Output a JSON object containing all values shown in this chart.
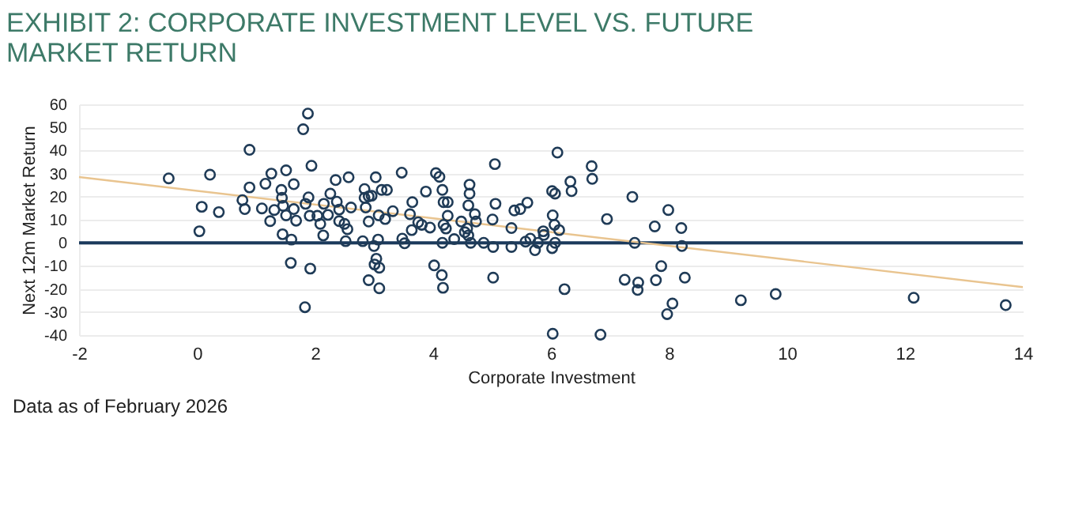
{
  "chart_data": {
    "type": "scatter",
    "title": "EXHIBIT 2: CORPORATE INVESTMENT LEVEL VS. FUTURE MARKET RETURN",
    "xlabel": "Corporate Investment",
    "ylabel": "Next 12m Market Return",
    "annotations": [
      "Data as of February 2026"
    ],
    "xlim": [
      -2,
      14
    ],
    "xticks": [
      -2,
      0,
      2,
      4,
      6,
      8,
      10,
      12,
      14
    ],
    "ylim": [
      -40,
      60
    ],
    "yticks": [
      -40,
      -30,
      -20,
      -10,
      0,
      10,
      20,
      30,
      40,
      50,
      60
    ],
    "grid": "y",
    "ref_lines": [
      {
        "axis": "y",
        "value": 0,
        "color": "#1b3a5c"
      }
    ],
    "series": [
      {
        "type": "scatter",
        "marker": "circle",
        "color": "#1f3b57",
        "x": [
          -0.48,
          0.22,
          0.08,
          0.37,
          0.04,
          0.89,
          0.89,
          0.77,
          0.81,
          1.1,
          1.16,
          1.26,
          1.24,
          1.31,
          1.43,
          1.44,
          1.51,
          1.64,
          1.46,
          1.51,
          1.64,
          1.68,
          1.45,
          1.6,
          1.59,
          1.8,
          1.88,
          1.94,
          1.89,
          1.84,
          1.91,
          1.92,
          1.83,
          2.04,
          2.09,
          2.15,
          2.14,
          2.22,
          2.26,
          2.35,
          2.37,
          2.41,
          2.41,
          2.5,
          2.57,
          2.61,
          2.55,
          2.52,
          2.81,
          2.84,
          2.84,
          2.91,
          2.96,
          3.03,
          2.86,
          2.91,
          3.08,
          3.07,
          3.0,
          3.04,
          3.01,
          3.09,
          2.91,
          3.09,
          3.13,
          3.22,
          3.19,
          3.32,
          3.47,
          3.48,
          3.52,
          3.61,
          3.65,
          3.75,
          3.81,
          3.88,
          3.64,
          3.95,
          4.05,
          4.11,
          4.16,
          4.18,
          4.25,
          4.25,
          4.18,
          4.22,
          4.16,
          4.36,
          4.48,
          4.54,
          4.58,
          4.6,
          4.64,
          4.6,
          4.62,
          4.62,
          4.71,
          4.73,
          4.86,
          5.02,
          5.05,
          5.06,
          5.01,
          5.02,
          4.02,
          4.15,
          4.17,
          5.33,
          5.33,
          5.38,
          5.48,
          5.6,
          5.57,
          5.65,
          5.73,
          5.78,
          5.87,
          5.88,
          6.03,
          6.02,
          6.07,
          6.06,
          6.14,
          6.02,
          6.07,
          6.11,
          6.23,
          6.03,
          6.33,
          6.35,
          6.69,
          6.7,
          6.84,
          6.95,
          7.25,
          7.38,
          7.42,
          7.48,
          7.47,
          7.76,
          7.78,
          7.87,
          7.99,
          8.06,
          7.97,
          8.21,
          8.22,
          8.27,
          9.22,
          9.81,
          12.15,
          13.71
        ],
        "values": [
          27.9,
          29.5,
          15.6,
          13.3,
          5.0,
          40.3,
          24,
          18.5,
          14.6,
          14.9,
          25.6,
          30,
          9.4,
          14.2,
          22.9,
          19.5,
          31.4,
          25.4,
          16,
          11.9,
          14.6,
          9.6,
          3.7,
          1.4,
          -8.7,
          49.2,
          56,
          33.4,
          19.7,
          16.9,
          11.7,
          -11.2,
          -27.9,
          11.7,
          8.2,
          16.9,
          3.2,
          12.1,
          21.3,
          27.2,
          17.8,
          14.4,
          9.4,
          8.2,
          28.4,
          15.3,
          5.9,
          0.7,
          0.7,
          23.3,
          19.5,
          20.1,
          20.4,
          28.4,
          15.3,
          9.2,
          11.9,
          1.4,
          -1.4,
          -6.9,
          -9.4,
          -10.8,
          -16.2,
          -19.7,
          22.9,
          22.9,
          10.3,
          13.7,
          30.4,
          1.8,
          -0.2,
          12.4,
          17.6,
          8.9,
          7.8,
          22.2,
          5.5,
          6.6,
          30.2,
          28.6,
          22.9,
          17.6,
          17.6,
          11.7,
          7.8,
          6.2,
          0,
          1.6,
          9.2,
          4.6,
          6.2,
          3.2,
          0,
          16.2,
          21.3,
          25.2,
          12.4,
          9.2,
          0,
          -1.8,
          34.1,
          16.9,
          10.1,
          -15.1,
          -9.8,
          -14,
          -19.5,
          -1.8,
          6.4,
          14,
          14.6,
          17.4,
          0.5,
          1.8,
          -3.2,
          0,
          5,
          3.4,
          11.9,
          22.4,
          21.3,
          7.8,
          5.5,
          -2.3,
          0,
          39.1,
          -20.1,
          -39.4,
          26.5,
          22.4,
          33.2,
          27.7,
          -39.8,
          10.3,
          -16,
          19.9,
          0,
          -17.2,
          -20.4,
          7.1,
          -16.2,
          -10.1,
          14.2,
          -26.3,
          -30.9,
          6.4,
          -1.4,
          -15.1,
          -24.9,
          -22.2,
          -23.8,
          -27
        ]
      },
      {
        "type": "line",
        "color": "#e9c48f",
        "x": [
          -2,
          14
        ],
        "values": [
          28.5,
          -19.2
        ]
      }
    ]
  }
}
